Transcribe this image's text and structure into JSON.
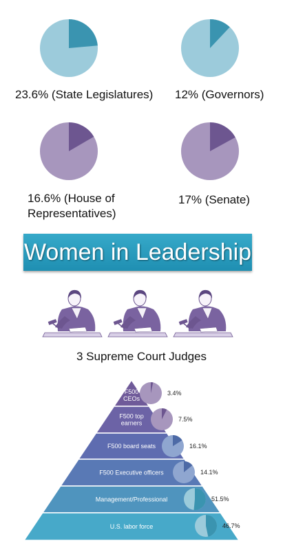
{
  "colors": {
    "blue_light": "#9ccbdb",
    "blue_dark": "#3a94b0",
    "purple_light": "#a796bd",
    "purple_dark": "#6d5690",
    "banner": "#2a9cbf"
  },
  "chart_data": [
    {
      "type": "pie",
      "series": [
        {
          "name": "",
          "values": [
            23.6,
            76.4
          ]
        }
      ],
      "label": "23.6% (State Legislatures)"
    },
    {
      "type": "pie",
      "series": [
        {
          "name": "",
          "values": [
            12,
            88
          ]
        }
      ],
      "label": "12% (Governors)"
    },
    {
      "type": "pie",
      "series": [
        {
          "name": "",
          "values": [
            16.6,
            83.4
          ]
        }
      ],
      "label": "16.6% (House of Representatives)"
    },
    {
      "type": "pie",
      "series": [
        {
          "name": "",
          "values": [
            17,
            83
          ]
        }
      ],
      "label": "17% (Senate)"
    },
    {
      "type": "pyramid",
      "categories": [
        "F500 CEOs",
        "F500 top earners",
        "F500 board seats",
        "F500 Executive officers",
        "Management/Professional",
        "U.S. labor force"
      ],
      "values": [
        3.4,
        7.5,
        16.1,
        14.1,
        51.5,
        46.7
      ],
      "value_labels": [
        "3.4%",
        "7.5%",
        "16.1%",
        "14.1%",
        "51.5%",
        "46.7%"
      ]
    }
  ],
  "banner": {
    "title": "Women in Leadership"
  },
  "judges": {
    "count": 3,
    "caption": "3 Supreme Court Judges"
  },
  "pyramid_label_lines": [
    [
      "F500",
      "CEOs"
    ],
    [
      "F500 top",
      "earners"
    ],
    [
      "F500 board seats"
    ],
    [
      "F500 Executive officers"
    ],
    [
      "Management/Professional"
    ],
    [
      "U.S. labor force"
    ]
  ]
}
